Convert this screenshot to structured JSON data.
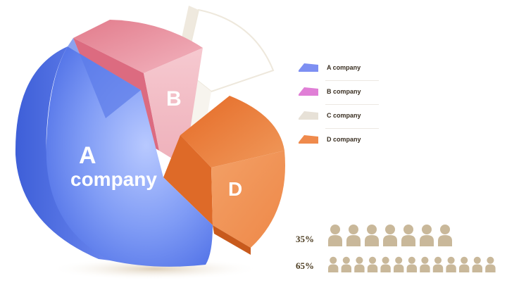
{
  "chart_data": {
    "type": "pie",
    "slices": [
      {
        "name": "A company",
        "label_line1": "A",
        "label_line2": "company",
        "value": 45,
        "color": "#6f8ff0"
      },
      {
        "name": "B company",
        "label": "B",
        "value": 15,
        "color": "#e58a9a"
      },
      {
        "name": "C company",
        "label": "",
        "value": 15,
        "color": "#f1ede6"
      },
      {
        "name": "D company",
        "label": "D",
        "value": 25,
        "color": "#ef8a45"
      }
    ],
    "legend": {
      "placement": "right",
      "items": [
        {
          "label": "A company",
          "color": "#7d8ff2"
        },
        {
          "label": "B company",
          "color": "#e07fd6"
        },
        {
          "label": "C company",
          "color": "#e7e1d7"
        },
        {
          "label": "D company",
          "color": "#ef8a4c"
        }
      ]
    },
    "pictogram": {
      "icon": "person-icon",
      "color": "#c9b89a",
      "rows": [
        {
          "label": "35%",
          "value": 35,
          "count": 7
        },
        {
          "label": "65%",
          "value": 65,
          "count": 13
        }
      ]
    }
  }
}
